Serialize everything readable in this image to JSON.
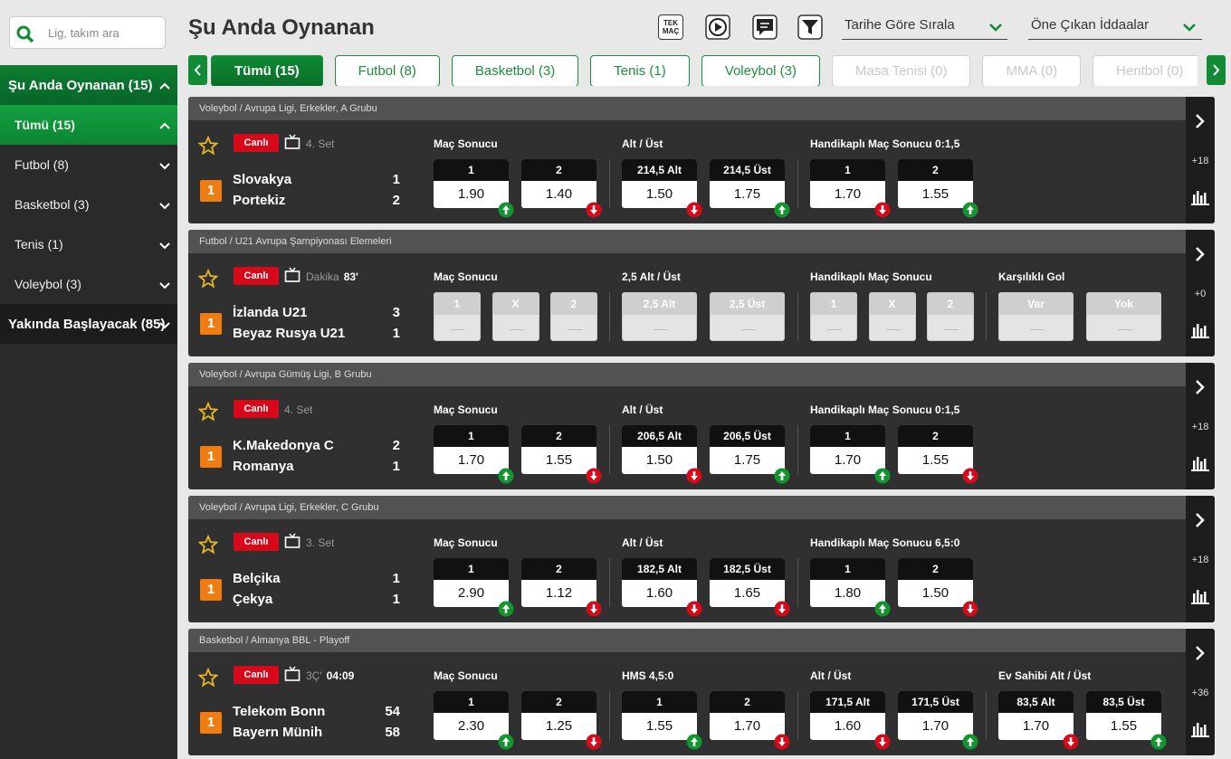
{
  "search": {
    "placeholder": "Lig, takım ara"
  },
  "sidebar": [
    {
      "label": "Şu Anda Oynanan (15)",
      "open": true,
      "items": [
        {
          "label": "Tümü (15)",
          "active": true
        },
        {
          "label": "Futbol (8)"
        },
        {
          "label": "Basketbol (3)"
        },
        {
          "label": "Tenis (1)"
        },
        {
          "label": "Voleybol (3)"
        }
      ]
    },
    {
      "label": "Yakında Başlayacak (85)",
      "open": false
    }
  ],
  "header": {
    "title": "Şu Anda Oynanan",
    "tek_mac": "TEK MAÇ",
    "sort": "Tarihe Göre Sırala",
    "bets": "Öne Çıkan İddaalar"
  },
  "tabs": [
    {
      "label": "Tümü (15)",
      "active": true
    },
    {
      "label": "Futbol (8)"
    },
    {
      "label": "Basketbol (3)"
    },
    {
      "label": "Tenis (1)"
    },
    {
      "label": "Voleybol (3)"
    },
    {
      "label": "Masa Tenisi (0)",
      "disabled": true
    },
    {
      "label": "MMA (0)",
      "disabled": true
    },
    {
      "label": "Hentbol (0)",
      "disabled": true
    }
  ],
  "matches": [
    {
      "league": "Voleybol / Avrupa Ligi, Erkekler, A Grubu",
      "live": "Canlı",
      "tv": true,
      "period": "4. Set",
      "badge": "1",
      "teams": [
        {
          "name": "Slovakya",
          "score": 1
        },
        {
          "name": "Portekiz",
          "score": 2
        }
      ],
      "markets": [
        {
          "title": "Maç Sonucu",
          "outcomes": [
            {
              "label": "1",
              "odd": "1.90",
              "trend": "up"
            },
            {
              "label": "2",
              "odd": "1.40",
              "trend": "down"
            }
          ]
        },
        {
          "title": "Alt / Üst",
          "outcomes": [
            {
              "label": "214,5 Alt",
              "odd": "1.50",
              "trend": "down"
            },
            {
              "label": "214,5 Üst",
              "odd": "1.75",
              "trend": "up"
            }
          ]
        },
        {
          "title": "Handikaplı Maç Sonucu 0:1,5",
          "outcomes": [
            {
              "label": "1",
              "odd": "1.70",
              "trend": "down"
            },
            {
              "label": "2",
              "odd": "1.55",
              "trend": "up"
            }
          ]
        }
      ],
      "more": "+18"
    },
    {
      "league": "Futbol / U21 Avrupa Şampiyonası Elemeleri",
      "live": "Canlı",
      "tv": true,
      "period": "Dakika",
      "clock": "83'",
      "badge": "1",
      "teams": [
        {
          "name": "İzlanda U21",
          "score": 3
        },
        {
          "name": "Beyaz Rusya U21",
          "score": 1
        }
      ],
      "markets": [
        {
          "title": "Maç Sonucu",
          "suspended": true,
          "outcomes": [
            {
              "label": "1"
            },
            {
              "label": "X"
            },
            {
              "label": "2"
            }
          ]
        },
        {
          "title": "2,5 Alt / Üst",
          "suspended": true,
          "outcomes": [
            {
              "label": "2,5 Alt"
            },
            {
              "label": "2,5 Üst"
            }
          ]
        },
        {
          "title": "Handikaplı Maç Sonucu",
          "suspended": true,
          "outcomes": [
            {
              "label": "1"
            },
            {
              "label": "X"
            },
            {
              "label": "2"
            }
          ]
        },
        {
          "title": "Karşılıklı Gol",
          "suspended": true,
          "outcomes": [
            {
              "label": "Var"
            },
            {
              "label": "Yok"
            }
          ]
        }
      ],
      "more": "+0"
    },
    {
      "league": "Voleybol / Avrupa Gümüş Ligi, B Grubu",
      "live": "Canlı",
      "tv": false,
      "period": "4. Set",
      "badge": "1",
      "teams": [
        {
          "name": "K.Makedonya C",
          "score": 2
        },
        {
          "name": "Romanya",
          "score": 1
        }
      ],
      "markets": [
        {
          "title": "Maç Sonucu",
          "outcomes": [
            {
              "label": "1",
              "odd": "1.70",
              "trend": "up"
            },
            {
              "label": "2",
              "odd": "1.55",
              "trend": "down"
            }
          ]
        },
        {
          "title": "Alt / Üst",
          "outcomes": [
            {
              "label": "206,5 Alt",
              "odd": "1.50",
              "trend": "down"
            },
            {
              "label": "206,5 Üst",
              "odd": "1.75",
              "trend": "up"
            }
          ]
        },
        {
          "title": "Handikaplı Maç Sonucu 0:1,5",
          "outcomes": [
            {
              "label": "1",
              "odd": "1.70",
              "trend": "up"
            },
            {
              "label": "2",
              "odd": "1.55",
              "trend": "down"
            }
          ]
        }
      ],
      "more": "+18"
    },
    {
      "league": "Voleybol / Avrupa Ligi, Erkekler, C Grubu",
      "live": "Canlı",
      "tv": true,
      "period": "3. Set",
      "badge": "1",
      "teams": [
        {
          "name": "Belçika",
          "score": 1
        },
        {
          "name": "Çekya",
          "score": 1
        }
      ],
      "markets": [
        {
          "title": "Maç Sonucu",
          "outcomes": [
            {
              "label": "1",
              "odd": "2.90",
              "trend": "up"
            },
            {
              "label": "2",
              "odd": "1.12",
              "trend": "down"
            }
          ]
        },
        {
          "title": "Alt / Üst",
          "outcomes": [
            {
              "label": "182,5 Alt",
              "odd": "1.60",
              "trend": "down"
            },
            {
              "label": "182,5 Üst",
              "odd": "1.65",
              "trend": "down"
            }
          ]
        },
        {
          "title": "Handikaplı Maç Sonucu 6,5:0",
          "outcomes": [
            {
              "label": "1",
              "odd": "1.80",
              "trend": "up"
            },
            {
              "label": "2",
              "odd": "1.50",
              "trend": "down"
            }
          ]
        }
      ],
      "more": "+18"
    },
    {
      "league": "Basketbol / Almanya BBL - Playoff",
      "live": "Canlı",
      "tv": true,
      "period": "3Ç'",
      "clock": "04:09",
      "badge": "1",
      "teams": [
        {
          "name": "Telekom Bonn",
          "score": 54
        },
        {
          "name": "Bayern Münih",
          "score": 58
        }
      ],
      "markets": [
        {
          "title": "Maç Sonucu",
          "outcomes": [
            {
              "label": "1",
              "odd": "2.30",
              "trend": "up"
            },
            {
              "label": "2",
              "odd": "1.25",
              "trend": "down"
            }
          ]
        },
        {
          "title": "HMS 4,5:0",
          "outcomes": [
            {
              "label": "1",
              "odd": "1.55",
              "trend": "up"
            },
            {
              "label": "2",
              "odd": "1.70",
              "trend": "down"
            }
          ]
        },
        {
          "title": "Alt / Üst",
          "outcomes": [
            {
              "label": "171,5 Alt",
              "odd": "1.60",
              "trend": "down"
            },
            {
              "label": "171,5 Üst",
              "odd": "1.70",
              "trend": "up"
            }
          ]
        },
        {
          "title": "Ev Sahibi Alt / Üst",
          "outcomes": [
            {
              "label": "83,5 Alt",
              "odd": "1.70",
              "trend": "down"
            },
            {
              "label": "83,5 Üst",
              "odd": "1.55",
              "trend": "up"
            }
          ]
        }
      ],
      "more": "+36"
    }
  ]
}
